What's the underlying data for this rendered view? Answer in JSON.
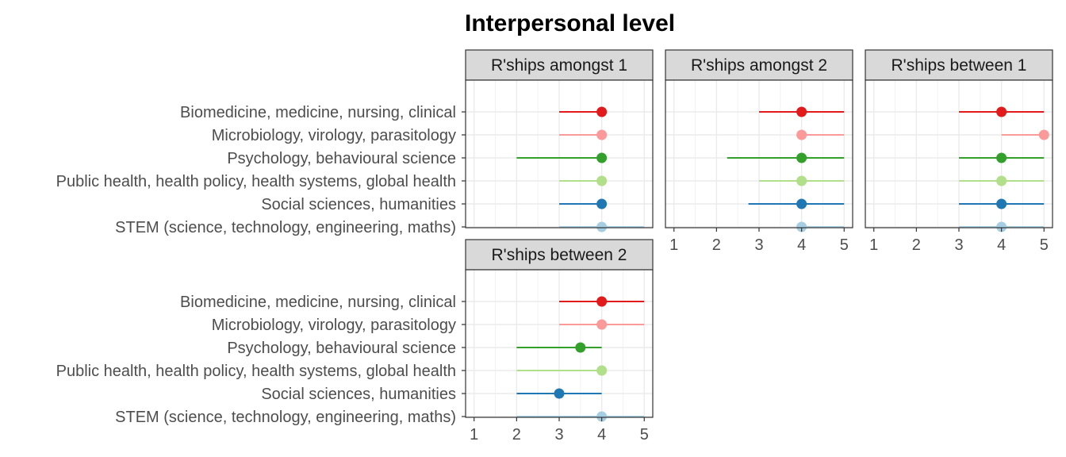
{
  "chart_data": {
    "type": "scatter",
    "subtype": "faceted point-range (dot with interval line)",
    "title": "Interpersonal level",
    "xlabel": "",
    "ylabel": "",
    "xlim": [
      0.8,
      5.2
    ],
    "xticks": [
      1,
      2,
      3,
      4,
      5
    ],
    "grid": true,
    "legend": "none",
    "categories": [
      "Biomedicine, medicine, nursing, clinical",
      "Microbiology, virology, parasitology",
      "Psychology, behavioural science",
      "Public health, health policy, health systems, global health",
      "Social sciences, humanities",
      "STEM (science, technology, engineering, maths)"
    ],
    "category_colors": [
      "#e31a1c",
      "#fb9a99",
      "#33a02c",
      "#b2df8a",
      "#1f78b4",
      "#a6cee3"
    ],
    "panels": [
      {
        "name": "R'ships amongst 1",
        "points": [
          {
            "value": 4,
            "low": 3,
            "high": 4
          },
          {
            "value": 4,
            "low": 3,
            "high": 4
          },
          {
            "value": 4,
            "low": 2,
            "high": 4
          },
          {
            "value": 4,
            "low": 3,
            "high": 4
          },
          {
            "value": 4,
            "low": 3,
            "high": 4
          },
          {
            "value": 4,
            "low": 3,
            "high": 5
          }
        ]
      },
      {
        "name": "R'ships amongst 2",
        "points": [
          {
            "value": 4,
            "low": 3,
            "high": 5
          },
          {
            "value": 4,
            "low": 4,
            "high": 5
          },
          {
            "value": 4,
            "low": 2.25,
            "high": 5
          },
          {
            "value": 4,
            "low": 3,
            "high": 5
          },
          {
            "value": 4,
            "low": 2.75,
            "high": 5
          },
          {
            "value": 4,
            "low": 4,
            "high": 5
          }
        ]
      },
      {
        "name": "R'ships between 1",
        "points": [
          {
            "value": 4,
            "low": 3,
            "high": 5
          },
          {
            "value": 5,
            "low": 4,
            "high": 5
          },
          {
            "value": 4,
            "low": 3,
            "high": 5
          },
          {
            "value": 4,
            "low": 3,
            "high": 5
          },
          {
            "value": 4,
            "low": 3,
            "high": 5
          },
          {
            "value": 4,
            "low": 3,
            "high": 5
          }
        ]
      },
      {
        "name": "R'ships between 2",
        "points": [
          {
            "value": 4,
            "low": 3,
            "high": 5
          },
          {
            "value": 4,
            "low": 3,
            "high": 5
          },
          {
            "value": 3.5,
            "low": 2,
            "high": 4
          },
          {
            "value": 4,
            "low": 2,
            "high": 4
          },
          {
            "value": 3,
            "low": 2,
            "high": 4
          },
          {
            "value": 4,
            "low": 2,
            "high": 5
          }
        ]
      }
    ]
  }
}
